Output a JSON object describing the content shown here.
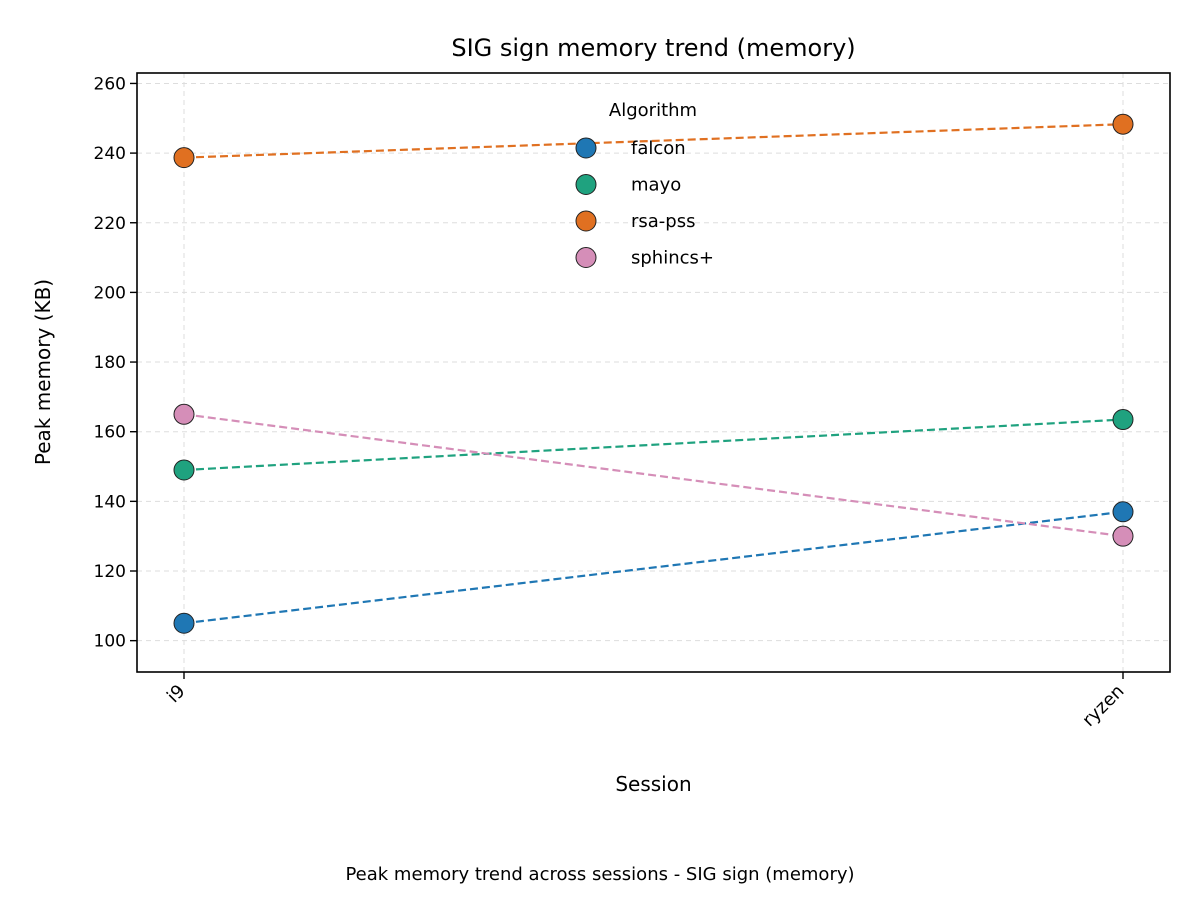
{
  "chart_data": {
    "type": "line",
    "title": "SIG sign memory trend (memory)",
    "xlabel": "Session",
    "ylabel": "Peak memory (KB)",
    "categories": [
      "i9",
      "ryzen"
    ],
    "ylim": [
      91,
      263
    ],
    "yticks": [
      100,
      120,
      140,
      160,
      180,
      200,
      220,
      240,
      260
    ],
    "grid": true,
    "legend": {
      "title": "Algorithm",
      "placement": "top-center"
    },
    "series": [
      {
        "name": "falcon",
        "color": "#1f77b4",
        "values": [
          105,
          137
        ]
      },
      {
        "name": "mayo",
        "color": "#1fa27f",
        "values": [
          149,
          163.5
        ]
      },
      {
        "name": "rsa-pss",
        "color": "#e07021",
        "values": [
          238.7,
          248.3
        ]
      },
      {
        "name": "sphincs+",
        "color": "#d58eb8",
        "values": [
          165,
          130
        ]
      }
    ]
  },
  "caption": "Peak memory trend across sessions - SIG sign (memory)"
}
